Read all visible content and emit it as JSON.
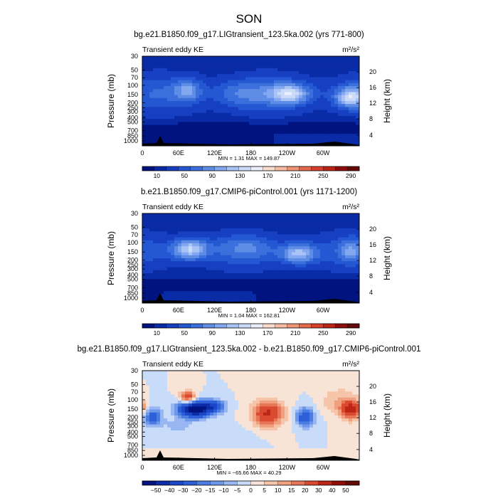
{
  "figure": {
    "title": "SON"
  },
  "chart_data": [
    {
      "type": "heatmap",
      "title": "bg.e21.B1850.f09_g17.LIGtransient_123.5ka.002 (yrs 771-800)",
      "inner_title": "Transient eddy KE",
      "units": "m²/s²",
      "ylabel": "Pressure (mb)",
      "ylabel_right": "Height (km)",
      "x_ticks": [
        "0",
        "60E",
        "120E",
        "180",
        "120W",
        "60W"
      ],
      "y_ticks": [
        "30",
        "50",
        "70",
        "100",
        "150",
        "200",
        "250",
        "300",
        "400",
        "500",
        "700",
        "850",
        "1000"
      ],
      "y_ticks_right": [
        "20",
        "16",
        "12",
        "8",
        "4"
      ],
      "minmax": "MIN =     1.31   MAX = 149.87",
      "colorbar": {
        "labels": [
          "10",
          "50",
          "90",
          "130",
          "170",
          "210",
          "250",
          "290"
        ],
        "colors": [
          "#00137f",
          "#0a2ba6",
          "#173fc1",
          "#2457d2",
          "#3b6fdc",
          "#5f8de6",
          "#83a8ef",
          "#aac3f5",
          "#cbdaf9",
          "#eaeefa",
          "#f9dccc",
          "#f6bca1",
          "#ef9575",
          "#e56a4c",
          "#d7412b",
          "#bc2415",
          "#8f0d0b",
          "#640a08"
        ]
      },
      "field": "lig"
    },
    {
      "type": "heatmap",
      "title": "b.e21.B1850.f09_g17.CMIP6-piControl.001 (yrs 1171-1200)",
      "inner_title": "Transient eddy KE",
      "units": "m²/s²",
      "ylabel": "Pressure (mb)",
      "ylabel_right": "Height (km)",
      "x_ticks": [
        "0",
        "60E",
        "120E",
        "180",
        "120W",
        "60W"
      ],
      "y_ticks": [
        "30",
        "50",
        "70",
        "100",
        "150",
        "200",
        "250",
        "300",
        "400",
        "500",
        "700",
        "850",
        "1000"
      ],
      "y_ticks_right": [
        "20",
        "16",
        "12",
        "8",
        "4"
      ],
      "minmax": "MIN =     1.04   MAX = 162.81",
      "colorbar": {
        "labels": [
          "10",
          "50",
          "90",
          "130",
          "170",
          "210",
          "250",
          "290"
        ],
        "colors": [
          "#00137f",
          "#0a2ba6",
          "#173fc1",
          "#2457d2",
          "#3b6fdc",
          "#5f8de6",
          "#83a8ef",
          "#aac3f5",
          "#cbdaf9",
          "#eaeefa",
          "#f9dccc",
          "#f6bca1",
          "#ef9575",
          "#e56a4c",
          "#d7412b",
          "#bc2415",
          "#8f0d0b",
          "#640a08"
        ]
      },
      "field": "pi"
    },
    {
      "type": "heatmap",
      "title": "bg.e21.B1850.f09_g17.LIGtransient_123.5ka.002 - b.e21.B1850.f09_g17.CMIP6-piControl.001",
      "inner_title": "Transient eddy KE",
      "units": "m²/s²",
      "ylabel": "Pressure (mb)",
      "ylabel_right": "Height (km)",
      "x_ticks": [
        "0",
        "60E",
        "120E",
        "180",
        "120W",
        "60W"
      ],
      "y_ticks": [
        "30",
        "50",
        "70",
        "100",
        "150",
        "200",
        "250",
        "300",
        "400",
        "500",
        "700",
        "850",
        "1000"
      ],
      "y_ticks_right": [
        "20",
        "16",
        "12",
        "8",
        "4"
      ],
      "minmax": "MIN = −65.66   MAX =  40.29",
      "colorbar": {
        "labels": [
          "−50",
          "−40",
          "−30",
          "−20",
          "−15",
          "−10",
          "−5",
          "0",
          "5",
          "10",
          "15",
          "20",
          "30",
          "40",
          "50"
        ],
        "colors": [
          "#00137f",
          "#0c2ca8",
          "#1c47c8",
          "#2c5fd8",
          "#4a7ce2",
          "#6d98ea",
          "#97b6f2",
          "#c8dbf8",
          "#f8e4d6",
          "#f6c4a8",
          "#f0a07e",
          "#e77656",
          "#d94a30",
          "#bd2516",
          "#8f0d0b",
          "#640a08"
        ]
      },
      "field": "diff"
    }
  ]
}
